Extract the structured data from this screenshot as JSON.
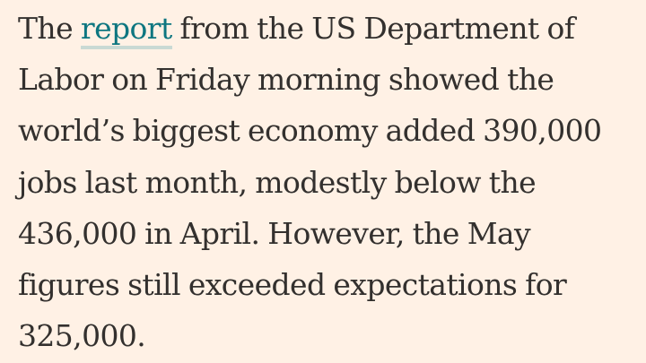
{
  "article": {
    "lines": [
      {
        "before": "The ",
        "link": "report",
        "after": " from the US Department of"
      },
      "Labor on Friday morning showed the",
      "world’s biggest economy added 390,000",
      "jobs last month, modestly below the",
      "436,000 in April. However, the May",
      "figures still exceeded expectations for",
      "325,000."
    ]
  },
  "colors": {
    "background": "#fff1e5",
    "text": "#33302e",
    "link": "#0d7680",
    "link_underline": "#c9d9d4"
  }
}
